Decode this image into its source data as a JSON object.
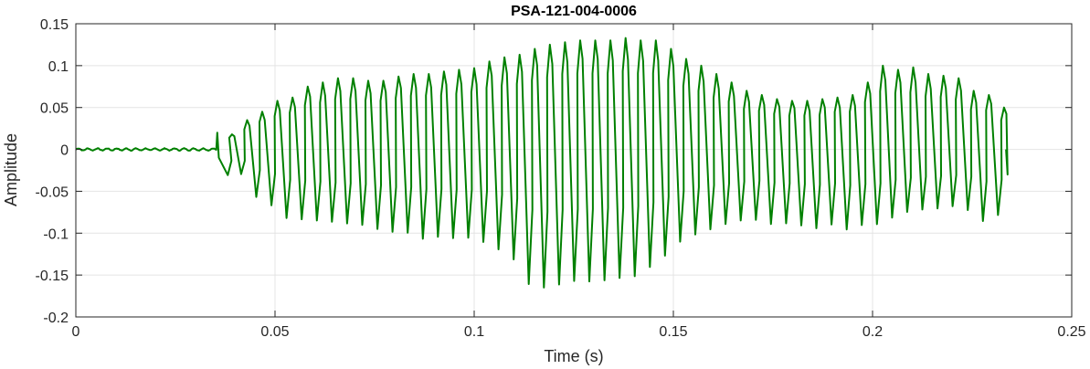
{
  "chart_data": {
    "type": "line",
    "title": "PSA-121-004-0006",
    "xlabel": "Time (s)",
    "ylabel": "Amplitude",
    "xlim": [
      0,
      0.25
    ],
    "ylim": [
      -0.2,
      0.15
    ],
    "xticks": [
      0,
      0.05,
      0.1,
      0.15,
      0.2,
      0.25
    ],
    "xtick_labels": [
      "0",
      "0.05",
      "0.1",
      "0.15",
      "0.2",
      "0.25"
    ],
    "yticks": [
      -0.2,
      -0.15,
      -0.1,
      -0.05,
      0,
      0.05,
      0.1,
      0.15
    ],
    "ytick_labels": [
      "-0.2",
      "-0.15",
      "-0.1",
      "-0.05",
      "0",
      "0.05",
      "0.1",
      "0.15"
    ],
    "grid": true,
    "line_color": "#008000",
    "series": [
      {
        "x_range": [
          0,
          0.2335
        ],
        "onset": 0.0355,
        "peak_times": [
          0.0392,
          0.043,
          0.0468,
          0.0506,
          0.0544,
          0.0582,
          0.062,
          0.0658,
          0.0696,
          0.0734,
          0.0772,
          0.081,
          0.0848,
          0.0886,
          0.0924,
          0.0962,
          0.1,
          0.1038,
          0.1076,
          0.1114,
          0.1152,
          0.119,
          0.1228,
          0.1266,
          0.1304,
          0.1342,
          0.138,
          0.1418,
          0.1456,
          0.1494,
          0.1532,
          0.157,
          0.1608,
          0.1646,
          0.1684,
          0.1722,
          0.176,
          0.1798,
          0.1836,
          0.1874,
          0.1912,
          0.195,
          0.1988,
          0.2026,
          0.2064,
          0.2102,
          0.214,
          0.2178,
          0.2216,
          0.2254,
          0.2292,
          0.233
        ],
        "peak_values": [
          0.018,
          0.035,
          0.045,
          0.058,
          0.062,
          0.075,
          0.08,
          0.085,
          0.085,
          0.082,
          0.082,
          0.087,
          0.09,
          0.09,
          0.093,
          0.095,
          0.097,
          0.105,
          0.11,
          0.113,
          0.12,
          0.125,
          0.128,
          0.13,
          0.13,
          0.13,
          0.133,
          0.13,
          0.13,
          0.12,
          0.108,
          0.1,
          0.09,
          0.08,
          0.07,
          0.065,
          0.06,
          0.058,
          0.058,
          0.06,
          0.062,
          0.065,
          0.08,
          0.1,
          0.095,
          0.098,
          0.09,
          0.088,
          0.085,
          0.07,
          0.065,
          0.05
        ],
        "trough_values": [
          -0.03,
          -0.055,
          -0.065,
          -0.08,
          -0.083,
          -0.085,
          -0.088,
          -0.09,
          -0.092,
          -0.095,
          -0.1,
          -0.1,
          -0.105,
          -0.105,
          -0.107,
          -0.107,
          -0.11,
          -0.12,
          -0.13,
          -0.16,
          -0.165,
          -0.16,
          -0.158,
          -0.158,
          -0.155,
          -0.155,
          -0.15,
          -0.14,
          -0.125,
          -0.11,
          -0.1,
          -0.095,
          -0.09,
          -0.085,
          -0.083,
          -0.088,
          -0.09,
          -0.092,
          -0.093,
          -0.09,
          -0.095,
          -0.092,
          -0.09,
          -0.08,
          -0.075,
          -0.072,
          -0.07,
          -0.068,
          -0.072,
          -0.085,
          -0.08,
          -0.03
        ]
      }
    ]
  }
}
